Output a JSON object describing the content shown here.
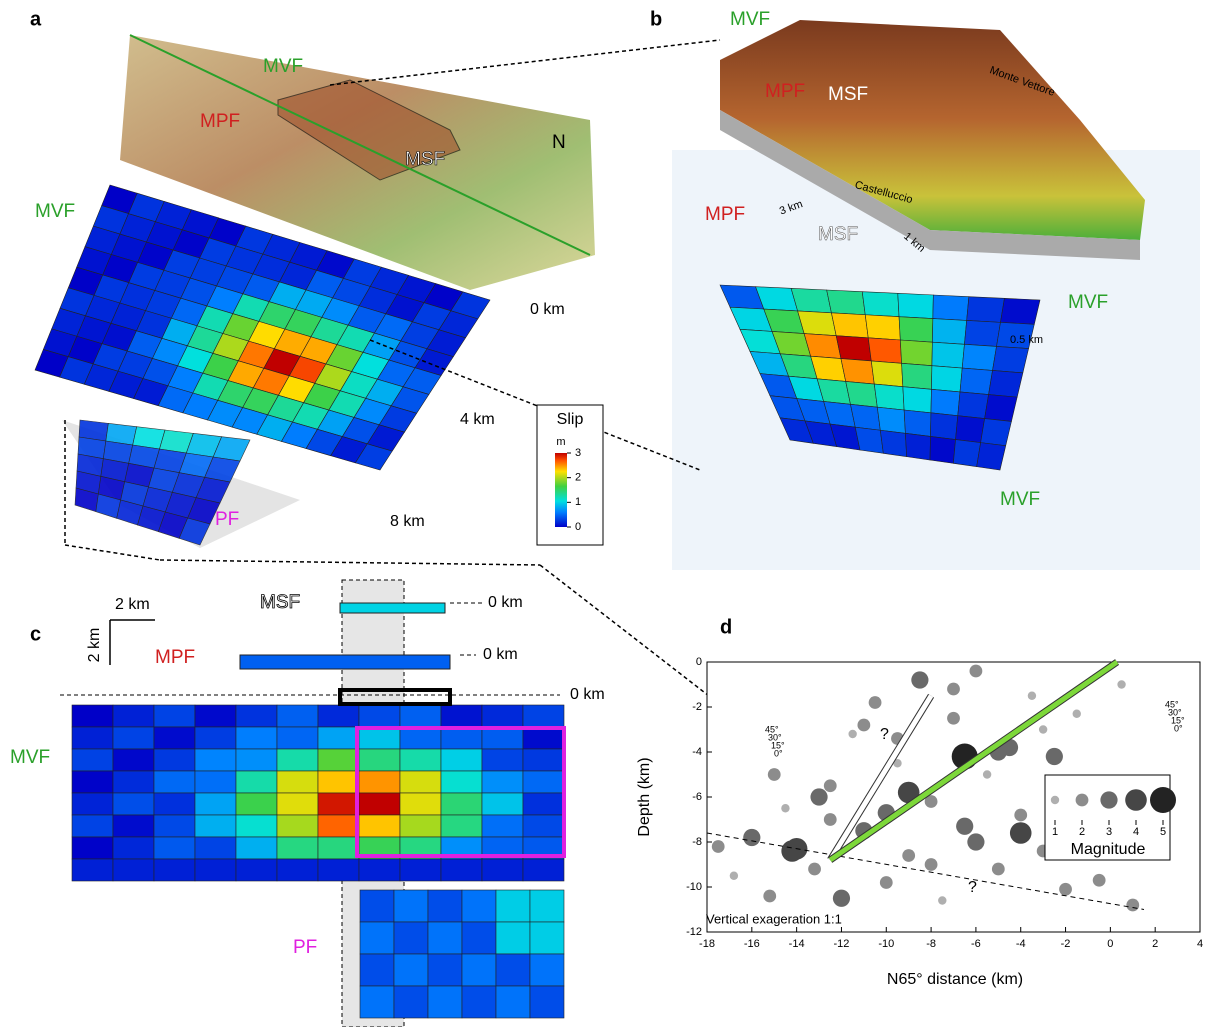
{
  "panel_a": {
    "label": "a",
    "faults": [
      "MVF",
      "MPF",
      "MSF",
      "MVF",
      "PF"
    ],
    "north": "N",
    "depths": [
      "0 km",
      "4 km",
      "8 km"
    ],
    "colorbar": {
      "title": "Slip",
      "unit": "m",
      "ticks": [
        0,
        1,
        2,
        3
      ]
    }
  },
  "panel_b": {
    "label": "b",
    "texts": [
      "MVF",
      "Monte Vettore",
      "MPF",
      "MSF",
      "Castelluccio",
      "MPF",
      "3 km",
      "MSF",
      "1 km",
      "MVF",
      "0.5 km",
      "MVF"
    ]
  },
  "panel_c": {
    "label": "c",
    "scale": [
      "2 km",
      "2 km"
    ],
    "faults": [
      "MSF",
      "MPF",
      "MVF",
      "PF"
    ],
    "depths": [
      "0 km",
      "0 km",
      "0 km"
    ]
  },
  "chart_data": {
    "type": "scatter",
    "label": "d",
    "xlabel": "N65° distance (km)",
    "ylabel": "Depth (km)",
    "xlim": [
      -18,
      4
    ],
    "ylim": [
      -12,
      0
    ],
    "xticks": [
      -18,
      -16,
      -14,
      -12,
      -10,
      -8,
      -6,
      -4,
      -2,
      0,
      2,
      4
    ],
    "yticks": [
      0,
      -2,
      -4,
      -6,
      -8,
      -10,
      -12
    ],
    "annotation": "Vertical exageration 1:1",
    "question_marks": [
      "?",
      "?"
    ],
    "dip_labels": [
      "45°",
      "30°",
      "15°",
      "0°"
    ],
    "legend_title": "Magnitude",
    "legend_values": [
      1,
      2,
      3,
      4,
      5
    ],
    "x": [
      -17.5,
      -16.8,
      -16,
      -15.2,
      -14.5,
      -14,
      -13.2,
      -12.5,
      -12,
      -11.5,
      -11,
      -10.5,
      -10,
      -9.5,
      -9,
      -8.5,
      -8,
      -7.5,
      -7,
      -6.5,
      -6,
      -5.5,
      -5,
      -4.5,
      -4,
      -3.5,
      -3,
      -2.5,
      -2,
      -1.5,
      -1,
      -0.5,
      0.5,
      1,
      -13,
      -11,
      -9,
      -7,
      -5,
      -3,
      -12.5,
      -10,
      -8,
      -6,
      -4,
      -2,
      -15,
      -6.5,
      -14.2,
      -9.5
    ],
    "y": [
      -8.2,
      -9.5,
      -7.8,
      -10.4,
      -6.5,
      -8.3,
      -9.2,
      -5.5,
      -10.5,
      -3.2,
      -7.5,
      -1.8,
      -9.8,
      -4.5,
      -8.6,
      -0.8,
      -6.2,
      -10.6,
      -2.5,
      -7.3,
      -0.4,
      -5,
      -9.2,
      -3.8,
      -6.8,
      -1.5,
      -8.4,
      -4.2,
      -10.1,
      -2.3,
      -5.5,
      -9.7,
      -1,
      -10.8,
      -6,
      -2.8,
      -5.8,
      -1.2,
      -4,
      -3,
      -7,
      -6.7,
      -9,
      -8,
      -7.6,
      -5.8,
      -5,
      -4.2,
      -8.4,
      -3.4
    ],
    "magnitude": [
      2,
      1,
      3,
      2,
      1,
      4,
      2,
      2,
      3,
      1,
      3,
      2,
      2,
      1,
      2,
      3,
      2,
      1,
      2,
      3,
      2,
      1,
      2,
      3,
      2,
      1,
      2,
      3,
      2,
      1,
      2,
      2,
      1,
      2,
      3,
      2,
      4,
      2,
      3,
      1,
      2,
      3,
      2,
      3,
      4,
      1,
      2,
      5,
      4,
      2
    ]
  }
}
